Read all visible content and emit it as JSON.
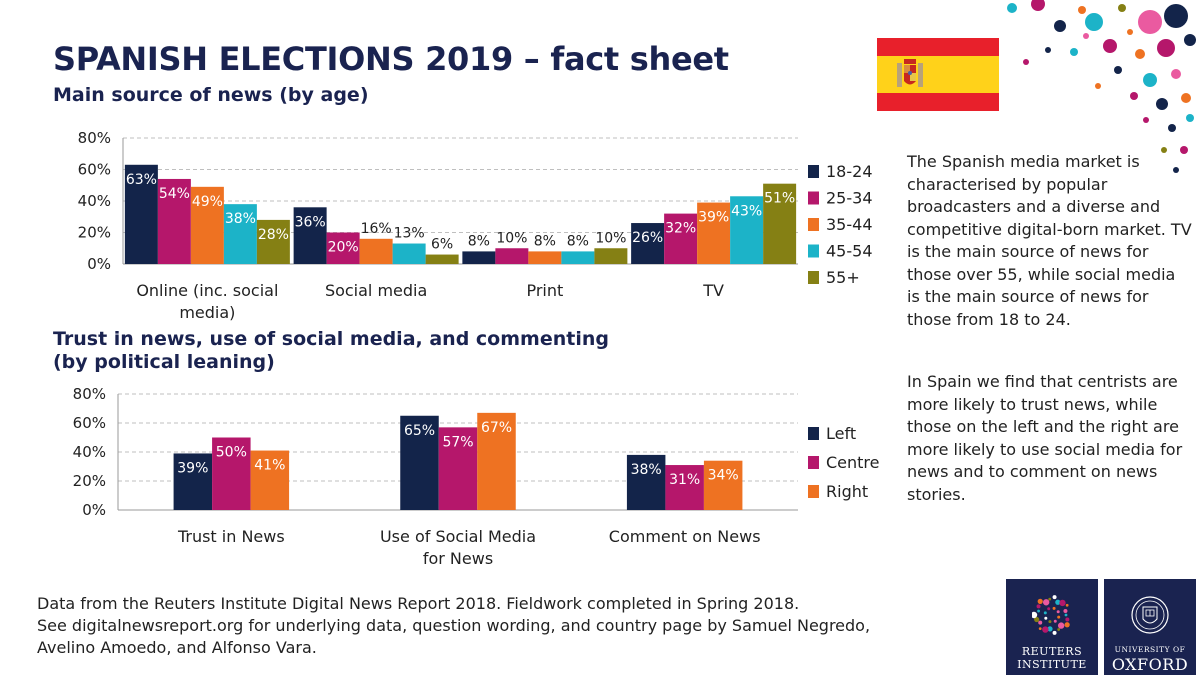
{
  "header": {
    "title": "SPANISH ELECTIONS 2019 – fact sheet",
    "subtitle1": "Main source of news (by age)",
    "subtitle2": "Trust in news, use of social media, and commenting (by political leaning)"
  },
  "side_text": {
    "p1": "The Spanish media market is characterised by popular broadcasters and a diverse and competitive digital-born market. TV is the main source of news for those over 55, while social media is the main source of news for those from 18 to 24.",
    "p2": "In Spain we find that centrists are more likely to trust news, while those on the left and the right are more likely to use social media for news and to comment on news stories."
  },
  "footer": {
    "line1": "Data from the Reuters Institute Digital News Report 2018. Fieldwork completed in Spring 2018.",
    "line2": "See digitalnewsreport.org  for underlying data, question wording, and country page by Samuel Negredo,",
    "line3": "Avelino Amoedo, and Alfonso Vara."
  },
  "logos": {
    "reuters": [
      "REUTERS",
      "INSTITUTE"
    ],
    "oxford": [
      "UNIVERSITY OF",
      "OXFORD"
    ]
  },
  "colors": {
    "navy": "#13244a",
    "magenta": "#b5176b",
    "orange": "#ee7222",
    "teal": "#1cb3c8",
    "olive": "#858014",
    "title": "#1a2350"
  },
  "chart_data": [
    {
      "type": "bar",
      "categories": [
        "Online (inc. social media)",
        "Social media",
        "Print",
        "TV"
      ],
      "series": [
        {
          "name": "18-24",
          "color": "#13244a",
          "values": [
            63,
            36,
            8,
            26
          ]
        },
        {
          "name": "25-34",
          "color": "#b5176b",
          "values": [
            54,
            20,
            10,
            32
          ]
        },
        {
          "name": "35-44",
          "color": "#ee7222",
          "values": [
            49,
            16,
            8,
            39
          ]
        },
        {
          "name": "45-54",
          "color": "#1cb3c8",
          "values": [
            38,
            13,
            8,
            43
          ]
        },
        {
          "name": "55+",
          "color": "#858014",
          "values": [
            28,
            6,
            10,
            51
          ]
        }
      ],
      "ylim": [
        0,
        80
      ],
      "yticks": [
        "0%",
        "20%",
        "40%",
        "60%",
        "80%"
      ],
      "legend": "right",
      "grid": true
    },
    {
      "type": "bar",
      "categories": [
        "Trust in News",
        "Use of Social Media for News",
        "Comment on News"
      ],
      "series": [
        {
          "name": "Left",
          "color": "#13244a",
          "values": [
            39,
            65,
            38
          ]
        },
        {
          "name": "Centre",
          "color": "#b5176b",
          "values": [
            50,
            57,
            31
          ]
        },
        {
          "name": "Right",
          "color": "#ee7222",
          "values": [
            41,
            67,
            34
          ]
        }
      ],
      "ylim": [
        0,
        80
      ],
      "yticks": [
        "0%",
        "20%",
        "40%",
        "60%",
        "80%"
      ],
      "legend": "right",
      "grid": true
    }
  ]
}
